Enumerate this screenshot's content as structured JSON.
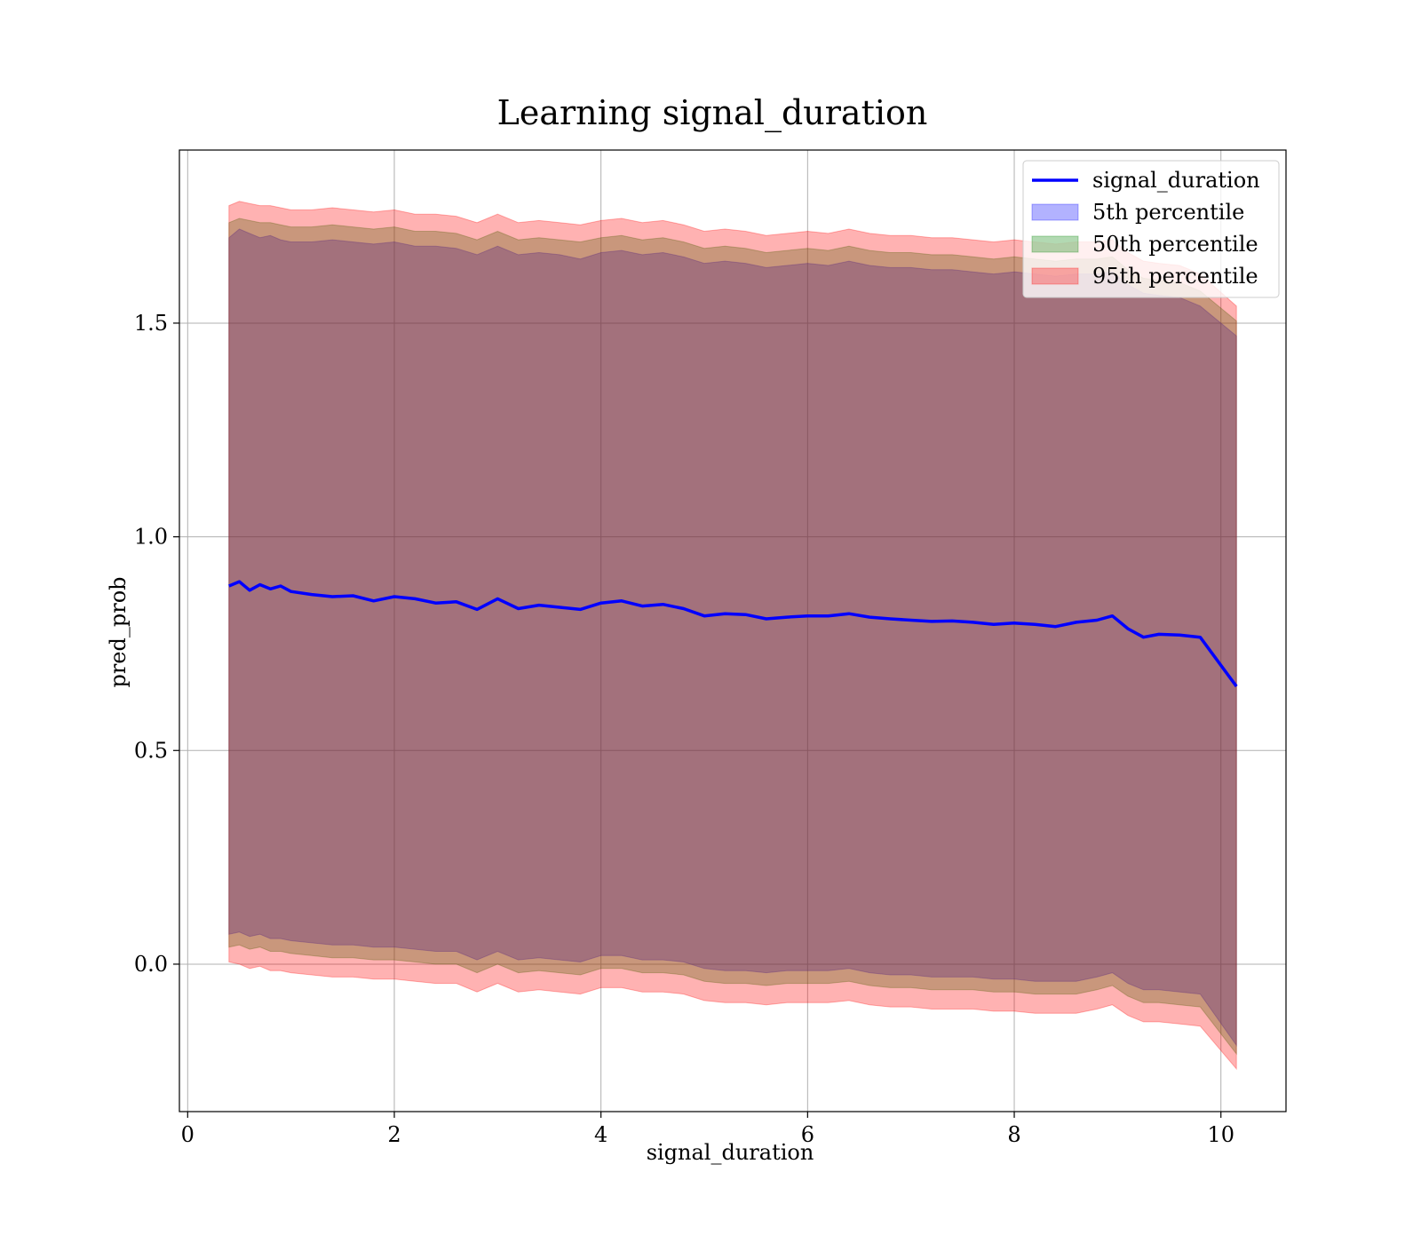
{
  "chart_data": {
    "type": "line",
    "title": "Learning signal_duration",
    "xlabel": "signal_duration",
    "ylabel": "pred_prob",
    "xlim": [
      -0.08,
      10.63
    ],
    "ylim": [
      -0.345,
      1.905
    ],
    "x_ticks": [
      0,
      2,
      4,
      6,
      8,
      10
    ],
    "x_tick_labels": [
      "0",
      "2",
      "4",
      "6",
      "8",
      "10"
    ],
    "y_ticks": [
      0.0,
      0.5,
      1.0,
      1.5
    ],
    "y_tick_labels": [
      "0.0",
      "0.5",
      "1.0",
      "1.5"
    ],
    "grid": true,
    "legend_position": "top-right",
    "x": [
      0.4,
      0.5,
      0.6,
      0.7,
      0.8,
      0.9,
      1.0,
      1.2,
      1.4,
      1.6,
      1.8,
      2.0,
      2.2,
      2.4,
      2.6,
      2.8,
      3.0,
      3.2,
      3.4,
      3.6,
      3.8,
      4.0,
      4.2,
      4.4,
      4.6,
      4.8,
      5.0,
      5.2,
      5.4,
      5.6,
      5.8,
      6.0,
      6.2,
      6.4,
      6.6,
      6.8,
      7.0,
      7.2,
      7.4,
      7.6,
      7.8,
      8.0,
      8.2,
      8.4,
      8.6,
      8.8,
      8.95,
      9.1,
      9.25,
      9.4,
      9.6,
      9.8,
      10.15
    ],
    "series": [
      {
        "name": "signal_duration",
        "role": "line",
        "color": "#0000ff",
        "values": [
          0.885,
          0.895,
          0.875,
          0.888,
          0.878,
          0.885,
          0.872,
          0.865,
          0.86,
          0.862,
          0.85,
          0.86,
          0.855,
          0.845,
          0.848,
          0.83,
          0.855,
          0.832,
          0.84,
          0.835,
          0.83,
          0.845,
          0.85,
          0.838,
          0.842,
          0.832,
          0.815,
          0.82,
          0.818,
          0.808,
          0.812,
          0.815,
          0.815,
          0.82,
          0.812,
          0.808,
          0.805,
          0.802,
          0.803,
          0.8,
          0.795,
          0.798,
          0.795,
          0.79,
          0.8,
          0.805,
          0.815,
          0.785,
          0.765,
          0.772,
          0.77,
          0.765,
          0.65
        ]
      },
      {
        "name": "5th percentile",
        "role": "band",
        "color": "#0000ff",
        "lower": [
          0.07,
          0.075,
          0.065,
          0.07,
          0.06,
          0.06,
          0.055,
          0.05,
          0.045,
          0.045,
          0.04,
          0.04,
          0.035,
          0.03,
          0.03,
          0.01,
          0.03,
          0.01,
          0.015,
          0.01,
          0.005,
          0.02,
          0.02,
          0.01,
          0.01,
          0.005,
          -0.01,
          -0.015,
          -0.015,
          -0.02,
          -0.015,
          -0.015,
          -0.015,
          -0.01,
          -0.02,
          -0.025,
          -0.025,
          -0.03,
          -0.03,
          -0.03,
          -0.035,
          -0.035,
          -0.04,
          -0.04,
          -0.04,
          -0.03,
          -0.02,
          -0.045,
          -0.06,
          -0.06,
          -0.065,
          -0.07,
          -0.19
        ],
        "upper": [
          1.7,
          1.72,
          1.71,
          1.7,
          1.705,
          1.695,
          1.69,
          1.69,
          1.695,
          1.69,
          1.685,
          1.69,
          1.68,
          1.68,
          1.675,
          1.66,
          1.68,
          1.66,
          1.665,
          1.66,
          1.65,
          1.665,
          1.67,
          1.66,
          1.665,
          1.655,
          1.64,
          1.645,
          1.64,
          1.63,
          1.635,
          1.64,
          1.635,
          1.645,
          1.635,
          1.63,
          1.63,
          1.625,
          1.625,
          1.62,
          1.615,
          1.62,
          1.615,
          1.61,
          1.615,
          1.615,
          1.62,
          1.59,
          1.57,
          1.565,
          1.56,
          1.54,
          1.47
        ]
      },
      {
        "name": "50th percentile",
        "role": "band",
        "color": "#008000",
        "lower": [
          0.04,
          0.045,
          0.035,
          0.04,
          0.03,
          0.03,
          0.025,
          0.02,
          0.015,
          0.015,
          0.01,
          0.01,
          0.005,
          0.0,
          0.0,
          -0.02,
          0.0,
          -0.02,
          -0.015,
          -0.02,
          -0.025,
          -0.01,
          -0.01,
          -0.02,
          -0.02,
          -0.025,
          -0.04,
          -0.045,
          -0.045,
          -0.05,
          -0.045,
          -0.045,
          -0.045,
          -0.04,
          -0.05,
          -0.055,
          -0.055,
          -0.06,
          -0.06,
          -0.06,
          -0.065,
          -0.065,
          -0.07,
          -0.07,
          -0.07,
          -0.06,
          -0.05,
          -0.075,
          -0.09,
          -0.09,
          -0.095,
          -0.1,
          -0.21
        ],
        "upper": [
          1.735,
          1.745,
          1.74,
          1.735,
          1.735,
          1.73,
          1.725,
          1.725,
          1.73,
          1.725,
          1.72,
          1.725,
          1.715,
          1.715,
          1.71,
          1.695,
          1.715,
          1.695,
          1.7,
          1.695,
          1.69,
          1.7,
          1.705,
          1.695,
          1.7,
          1.69,
          1.675,
          1.68,
          1.675,
          1.665,
          1.67,
          1.675,
          1.67,
          1.68,
          1.67,
          1.665,
          1.665,
          1.66,
          1.66,
          1.655,
          1.65,
          1.655,
          1.65,
          1.645,
          1.65,
          1.65,
          1.655,
          1.625,
          1.605,
          1.6,
          1.595,
          1.575,
          1.505
        ]
      },
      {
        "name": "95th percentile",
        "role": "band",
        "color": "#ff0000",
        "lower": [
          0.005,
          0.0,
          -0.01,
          -0.005,
          -0.015,
          -0.015,
          -0.02,
          -0.025,
          -0.03,
          -0.03,
          -0.035,
          -0.035,
          -0.04,
          -0.045,
          -0.045,
          -0.065,
          -0.045,
          -0.065,
          -0.06,
          -0.065,
          -0.07,
          -0.055,
          -0.055,
          -0.065,
          -0.065,
          -0.07,
          -0.085,
          -0.09,
          -0.09,
          -0.095,
          -0.09,
          -0.09,
          -0.09,
          -0.085,
          -0.095,
          -0.1,
          -0.1,
          -0.105,
          -0.105,
          -0.105,
          -0.11,
          -0.11,
          -0.115,
          -0.115,
          -0.115,
          -0.105,
          -0.095,
          -0.12,
          -0.135,
          -0.135,
          -0.14,
          -0.145,
          -0.245
        ],
        "upper": [
          1.775,
          1.785,
          1.78,
          1.775,
          1.775,
          1.77,
          1.765,
          1.765,
          1.77,
          1.765,
          1.76,
          1.765,
          1.755,
          1.755,
          1.75,
          1.735,
          1.755,
          1.735,
          1.74,
          1.735,
          1.73,
          1.74,
          1.745,
          1.735,
          1.74,
          1.73,
          1.715,
          1.72,
          1.715,
          1.705,
          1.71,
          1.715,
          1.71,
          1.72,
          1.71,
          1.705,
          1.705,
          1.7,
          1.7,
          1.695,
          1.69,
          1.695,
          1.69,
          1.685,
          1.69,
          1.69,
          1.695,
          1.665,
          1.645,
          1.64,
          1.635,
          1.615,
          1.54
        ]
      }
    ]
  }
}
